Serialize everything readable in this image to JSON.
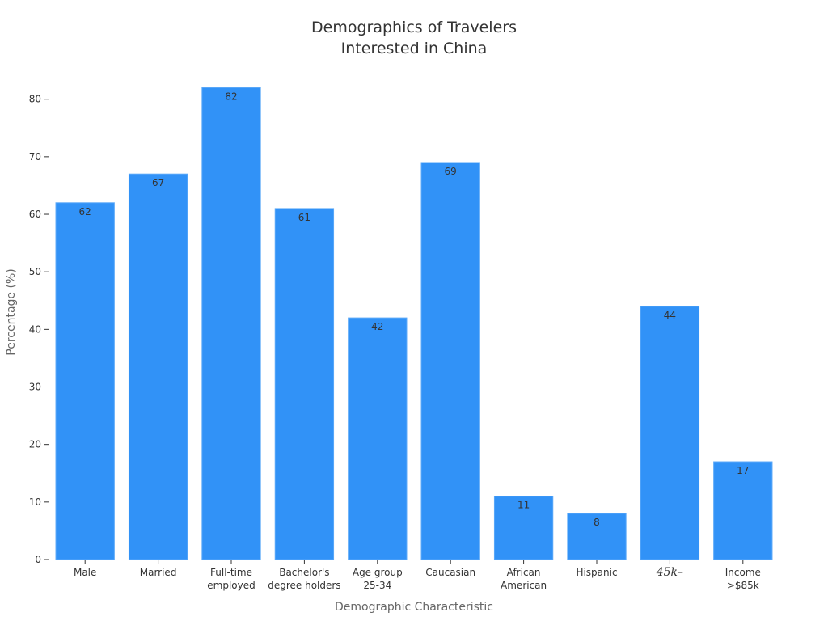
{
  "chart_data": {
    "type": "bar",
    "title_lines": [
      "Demographics of Travelers",
      "Interested in China"
    ],
    "xlabel": "Demographic Characteristic",
    "ylabel": "Percentage (%)",
    "categories": [
      [
        "Male"
      ],
      [
        "Married"
      ],
      [
        "Full-time",
        "employed"
      ],
      [
        "Bachelor's",
        "degree holders"
      ],
      [
        "Age group",
        "25-34"
      ],
      [
        "Caucasian"
      ],
      [
        "African",
        "American"
      ],
      [
        "Hispanic"
      ],
      [
        "45k–"
      ],
      [
        "Income",
        ">$85k"
      ]
    ],
    "values": [
      62,
      67,
      82,
      61,
      42,
      69,
      11,
      8,
      44,
      17
    ],
    "ylim": [
      0,
      86
    ],
    "yticks": [
      0,
      10,
      20,
      30,
      40,
      50,
      60,
      70,
      80
    ],
    "bar_color": "#3192f7",
    "grid": false,
    "legend": "none"
  }
}
